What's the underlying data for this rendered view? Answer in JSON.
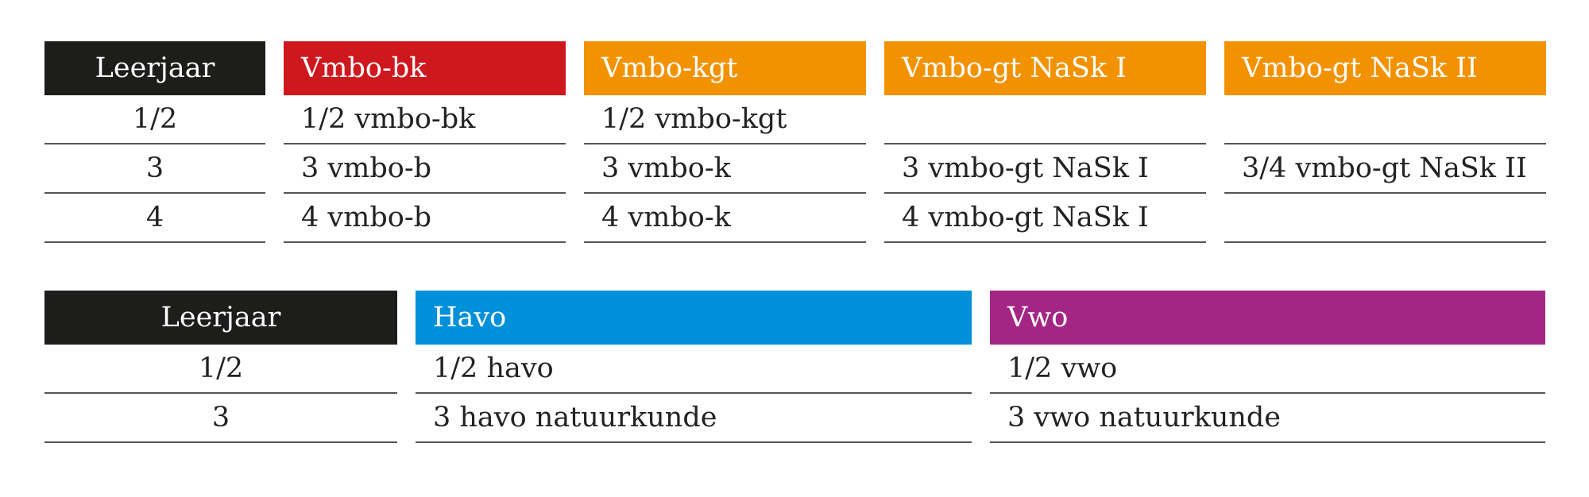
{
  "table_top": {
    "leerjaar_header": "Leerjaar",
    "leerjaar_rows": [
      "1/2",
      "3",
      "4"
    ],
    "columns": [
      {
        "key": "vmbo-bk",
        "header": "Vmbo-bk",
        "color": "#CF171E",
        "rows": [
          "1/2 vmbo-bk",
          "3 vmbo-b",
          "4 vmbo-b"
        ]
      },
      {
        "key": "vmbo-kgt",
        "header": "Vmbo-kgt",
        "color": "#F39200",
        "rows": [
          "1/2 vmbo-kgt",
          "3 vmbo-k",
          "4 vmbo-k"
        ]
      },
      {
        "key": "vmbo-gt-nask-1",
        "header": "Vmbo-gt NaSk I",
        "color": "#F39200",
        "rows": [
          "",
          "3 vmbo-gt NaSk I",
          "4 vmbo-gt NaSk I"
        ]
      },
      {
        "key": "vmbo-gt-nask-2",
        "header": "Vmbo-gt NaSk II",
        "color": "#F39200",
        "rows": [
          "",
          "3/4 vmbo-gt NaSk II",
          ""
        ]
      }
    ]
  },
  "table_bottom": {
    "leerjaar_header": "Leerjaar",
    "leerjaar_rows": [
      "1/2",
      "3"
    ],
    "columns": [
      {
        "key": "havo",
        "header": "Havo",
        "color": "#0090D9",
        "rows": [
          "1/2 havo",
          "3 havo natuurkunde"
        ]
      },
      {
        "key": "vwo",
        "header": "Vwo",
        "color": "#A32685",
        "rows": [
          "1/2 vwo",
          "3 vwo natuurkunde"
        ]
      }
    ]
  },
  "colors": {
    "leerjaar_header_bg": "#1D1D1B",
    "rule": "#555555",
    "text": "#222222"
  }
}
